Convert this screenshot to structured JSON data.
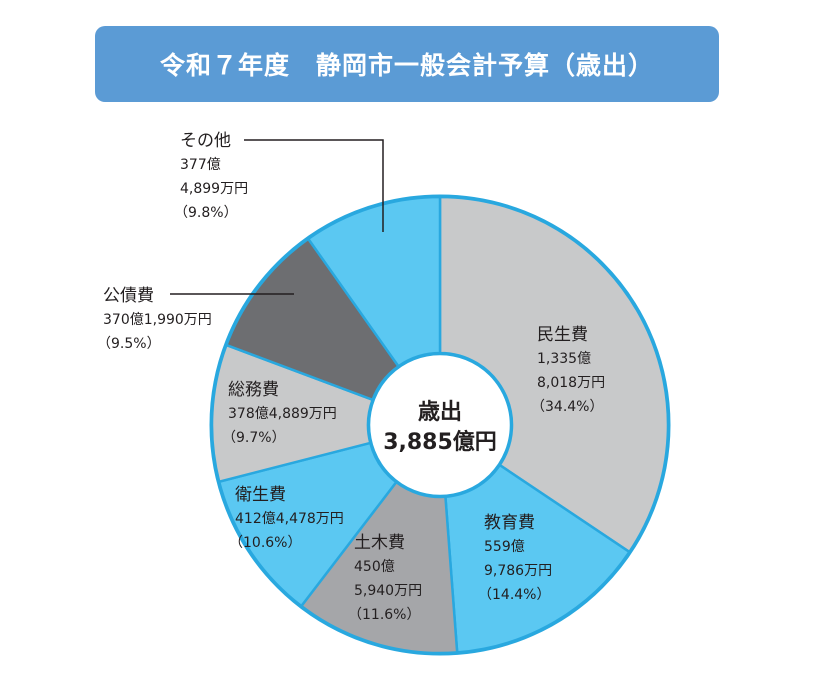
{
  "title": "令和７年度　静岡市一般会計予算（歳出）",
  "colors": {
    "title_bg": "#5b9bd5",
    "gray_light": "#c8c9ca",
    "gray_dark": "#6d6e71",
    "gray_mid": "#a5a6a9",
    "blue": "#5bc8f2",
    "edge": "#29a8df"
  },
  "chart_data": {
    "type": "pie",
    "style": "donut",
    "center_label": [
      "歳出",
      "3,885億円"
    ],
    "slices": [
      {
        "name": "民生費",
        "amount_lines": [
          "1,335億",
          "8,018万円"
        ],
        "percent_text": "（34.4%）",
        "percent": 34.4,
        "color": "#c8c9ca"
      },
      {
        "name": "教育費",
        "amount_lines": [
          "559億",
          "9,786万円"
        ],
        "percent_text": "（14.4%）",
        "percent": 14.4,
        "color": "#5bc8f2"
      },
      {
        "name": "土木費",
        "amount_lines": [
          "450億",
          "5,940万円"
        ],
        "percent_text": "（11.6%）",
        "percent": 11.6,
        "color": "#a5a6a9"
      },
      {
        "name": "衛生費",
        "amount_lines": [
          "412億4,478万円"
        ],
        "percent_text": "（10.6%）",
        "percent": 10.6,
        "color": "#5bc8f2"
      },
      {
        "name": "総務費",
        "amount_lines": [
          "378億4,889万円"
        ],
        "percent_text": "（9.7%）",
        "percent": 9.7,
        "color": "#c8c9ca"
      },
      {
        "name": "公債費",
        "amount_lines": [
          "370億1,990万円"
        ],
        "percent_text": "（9.5%）",
        "percent": 9.5,
        "color": "#6d6e71"
      },
      {
        "name": "その他",
        "amount_lines": [
          "377億",
          "4,899万円"
        ],
        "percent_text": "（9.8%）",
        "percent": 9.8,
        "color": "#5bc8f2"
      }
    ]
  }
}
